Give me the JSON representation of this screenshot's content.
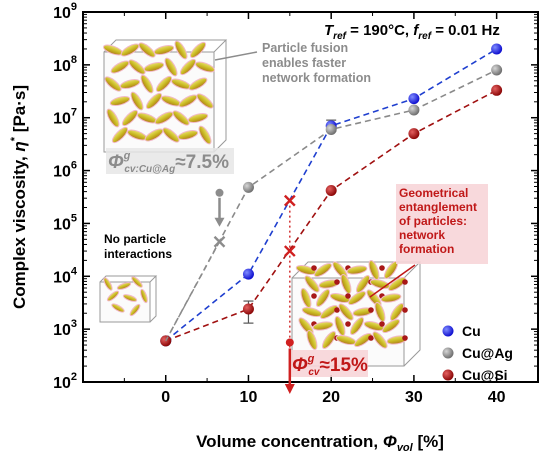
{
  "chart_data": {
    "type": "scatter",
    "xlabel": "Volume concentration, Φvol [%]",
    "xlabel_main": "Volume concentration, ",
    "xlabel_sym": "Φ",
    "xlabel_sub": "vol",
    "xlabel_unit": " [%]",
    "ylabel": "Complex viscosity, η* [Pa·s]",
    "ylabel_main": "Complex viscosity, ",
    "ylabel_sym": "η",
    "ylabel_sup": "*",
    "ylabel_unit": " [Pa·s]",
    "xlim": [
      -10,
      45
    ],
    "ylim": [
      100,
      1000000000
    ],
    "yscale": "log",
    "x_ticks": [
      0,
      10,
      20,
      30,
      40
    ],
    "y_tick_exps": [
      2,
      3,
      4,
      5,
      6,
      7,
      8,
      9
    ],
    "grid": false,
    "legend_position": "bottom-right",
    "series": [
      {
        "name": "Cu",
        "color": "#1f1fe6",
        "line_color": "#1f3fcf",
        "x": [
          0,
          10,
          20,
          30,
          40
        ],
        "y": [
          600,
          11000,
          7000000,
          23000000,
          200000000
        ],
        "errors": [
          null,
          null,
          [
            5500000,
            9000000
          ],
          null,
          null
        ]
      },
      {
        "name": "Cu@Ag",
        "color": "#8c8c8c",
        "line_color": "#8a8a8a",
        "x": [
          0,
          10,
          20,
          30,
          40
        ],
        "y": [
          600,
          480000,
          6000000,
          14000000,
          80000000
        ],
        "errors": [
          null,
          null,
          null,
          null,
          null
        ]
      },
      {
        "name": "Cu@Si",
        "color": "#b01010",
        "line_color": "#a01010",
        "x": [
          0,
          10,
          20,
          30,
          40
        ],
        "y": [
          600,
          2400,
          420000,
          5000000,
          33000000
        ],
        "errors": [
          null,
          [
            1300,
            3400
          ],
          null,
          null,
          null
        ]
      }
    ],
    "markers": {
      "gray_x": {
        "x": 6.5,
        "y": 45000,
        "color": "#8c8c8c"
      },
      "red_x_high": {
        "x": 15,
        "y": 270000,
        "color": "#d02020"
      },
      "red_x_low": {
        "x": 15,
        "y": 30000,
        "color": "#d02020"
      },
      "gray_dot": {
        "x": 6.5,
        "y": 380000,
        "color": "#8c8c8c"
      },
      "red_dot": {
        "x": 15,
        "y": 560,
        "color": "#d02020"
      }
    }
  },
  "annotations": {
    "conditions_Tref": "T",
    "conditions_Tref_sub": "ref",
    "conditions_Tval": " = 190°C, ",
    "conditions_fref": "f",
    "conditions_fref_sub": "ref",
    "conditions_fval": " = 0.01 Hz",
    "fusion_line1": "Particle fusion",
    "fusion_line2": "enables faster",
    "fusion_line3": "network formation",
    "phi_ag_sym": "Φ",
    "phi_ag_sup": "g",
    "phi_ag_sub": "cv:Cu@Ag",
    "phi_ag_val": "≈7.5%",
    "no_interaction_line1": "No particle",
    "no_interaction_line2": "interactions",
    "geo_line1": "Geometrical",
    "geo_line2": "entanglement",
    "geo_line3": "of particles:",
    "geo_line4": "network",
    "geo_line5": "formation",
    "phi_si_sym": "Φ",
    "phi_si_sup": "g",
    "phi_si_sub": "cv",
    "phi_si_val": "≈15%"
  },
  "legend": [
    {
      "label": "Cu",
      "color": "#1f1fe6"
    },
    {
      "label": "Cu@Ag",
      "color": "#8c8c8c"
    },
    {
      "label": "Cu@Si",
      "color": "#b01010"
    }
  ],
  "colors": {
    "axis": "#000000",
    "gray_text": "#8c8c8c",
    "red_text": "#c01818",
    "highlight_red": "#f7d5d8",
    "highlight_gray": "#e6e6e6",
    "particle_fill": "#d7cc2a",
    "particle_inner": "#c98a2c"
  }
}
